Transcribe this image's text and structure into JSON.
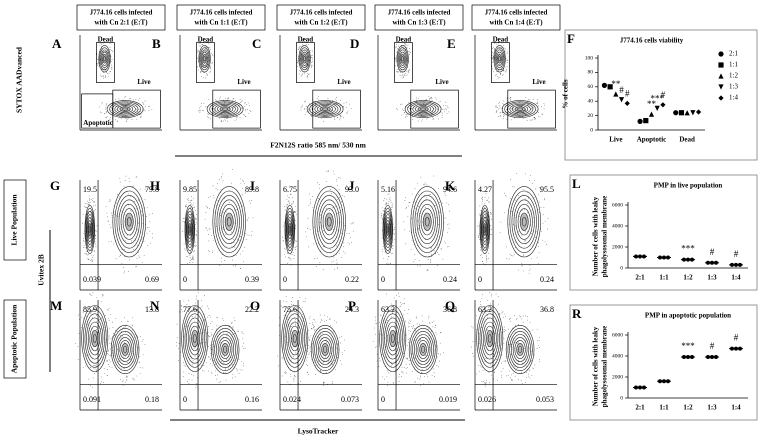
{
  "top_row": {
    "headers": [
      [
        "J774.16 cells infected",
        "with Cn 2:1 (E:T)"
      ],
      [
        "J774.16 cells infected",
        "with Cn 1:1 (E:T)"
      ],
      [
        "J774.16 cells infected",
        "with Cn 1:2 (E:T)"
      ],
      [
        "J774.16 cells infected",
        "with Cn 1:3 (E:T)"
      ],
      [
        "J774.16 cells infected",
        "with Cn 1:4 (E:T)"
      ]
    ],
    "panel_letters": [
      "A",
      "B",
      "C",
      "D",
      "E"
    ],
    "gates": [
      [
        "Dead",
        "Live",
        "Apoptotic"
      ],
      [
        "Dead",
        "Live"
      ],
      [
        "Dead",
        "Live"
      ],
      [
        "Dead",
        "Live"
      ],
      [
        "Dead",
        "Live"
      ]
    ],
    "y_axis_label": "SYTOX AADvanced",
    "x_axis_label": "F2N12S ratio 585 nm/ 530 nm"
  },
  "live_row": {
    "row_label": "Live Population",
    "panel_letters": [
      "G",
      "H",
      "I",
      "J",
      "K"
    ],
    "quadrants": [
      [
        "19.5",
        "79.8",
        "0.039",
        "0.69"
      ],
      [
        "9.85",
        "89.8",
        "0",
        "0.39"
      ],
      [
        "6.75",
        "93.0",
        "0",
        "0.22"
      ],
      [
        "5.16",
        "94.6",
        "0",
        "0.24"
      ],
      [
        "4.27",
        "95.5",
        "0",
        "0.24"
      ]
    ]
  },
  "apoptotic_row": {
    "row_label": "Apoptotic Population",
    "panel_letters": [
      "M",
      "N",
      "O",
      "P",
      "Q"
    ],
    "quadrants": [
      [
        "85.9",
        "13.8",
        "0.091",
        "0.18"
      ],
      [
        "77.6",
        "22.2",
        "0",
        "0.16"
      ],
      [
        "75.6",
        "24.3",
        "0.024",
        "0.073"
      ],
      [
        "63.2",
        "36.8",
        "0",
        "0.019"
      ],
      [
        "63.2",
        "36.8",
        "0.026",
        "0.053"
      ]
    ]
  },
  "shared_y_label": "Uvitex 2B",
  "shared_x_label": "LysoTracker",
  "chart_data": [
    {
      "type": "dot",
      "letter": "F",
      "title": "J774.16 cells viability",
      "y_label": [
        "% of cells"
      ],
      "categories": [
        "Live",
        "Apoptotic",
        "Dead"
      ],
      "ylim": [
        0,
        100
      ],
      "yticks": [
        0,
        20,
        40,
        60,
        80,
        100
      ],
      "legend": "right",
      "series": [
        {
          "name": "2:1",
          "marker": "circle",
          "color": "#000000",
          "values": [
            62,
            12,
            24
          ],
          "significance": [
            null,
            null,
            null
          ]
        },
        {
          "name": "1:1",
          "marker": "square",
          "color": "#000000",
          "values": [
            60,
            13,
            24
          ],
          "significance": [
            null,
            null,
            null
          ]
        },
        {
          "name": "1:2",
          "marker": "triangle-up",
          "color": "#000000",
          "values": [
            50,
            22,
            24
          ],
          "significance": [
            "**",
            "**",
            null
          ]
        },
        {
          "name": "1:3",
          "marker": "triangle-down",
          "color": "#000000",
          "values": [
            42,
            30,
            24
          ],
          "significance": [
            "#",
            "***",
            null
          ]
        },
        {
          "name": "1:4",
          "marker": "diamond",
          "color": "#000000",
          "values": [
            37,
            35,
            25
          ],
          "significance": [
            "#",
            "#",
            null
          ]
        }
      ]
    },
    {
      "type": "dot",
      "letter": "L",
      "title": "PMP in live population",
      "y_label": [
        "Number of cells with leaky",
        "phagolysosomal membrane"
      ],
      "categories": [
        "2:1",
        "1:1",
        "1:2",
        "1:3",
        "1:4"
      ],
      "values": [
        1100,
        1000,
        800,
        500,
        300
      ],
      "significance": [
        null,
        null,
        "***",
        "#",
        "#"
      ],
      "color": "#000000",
      "ylim": [
        0,
        6000
      ],
      "yticks": [
        0,
        2000,
        4000,
        6000
      ]
    },
    {
      "type": "dot",
      "letter": "R",
      "title": "PMP in apoptotic population",
      "y_label": [
        "Number of cells with leaky",
        "phagolysosomal membrane"
      ],
      "categories": [
        "2:1",
        "1:1",
        "1:2",
        "1:3",
        "1:4"
      ],
      "values": [
        1000,
        1600,
        3900,
        3900,
        4700
      ],
      "significance": [
        null,
        null,
        "***",
        "#",
        "#"
      ],
      "color": "#000000",
      "ylim": [
        0,
        6000
      ],
      "yticks": [
        0,
        2000,
        4000,
        6000
      ]
    }
  ]
}
